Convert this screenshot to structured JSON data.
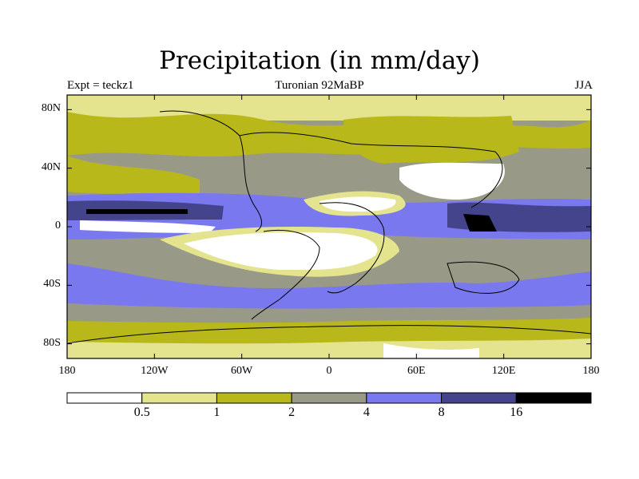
{
  "title": "Precipitation (in mm/day)",
  "left_string": "Expt = teckz1",
  "center_string": "Turonian  92MaBP",
  "right_string": "JJA",
  "map": {
    "lon_range": [
      -180,
      180
    ],
    "lat_range": [
      -90,
      90
    ],
    "x_ticks": [
      {
        "lon": -180,
        "label": "180"
      },
      {
        "lon": -120,
        "label": "120W"
      },
      {
        "lon": -60,
        "label": "60W"
      },
      {
        "lon": 0,
        "label": "0"
      },
      {
        "lon": 60,
        "label": "60E"
      },
      {
        "lon": 120,
        "label": "120E"
      },
      {
        "lon": 180,
        "label": "180"
      }
    ],
    "y_ticks": [
      {
        "lat": 80,
        "label": "80N"
      },
      {
        "lat": 40,
        "label": "40N"
      },
      {
        "lat": 0,
        "label": "0"
      },
      {
        "lat": -40,
        "label": "40S"
      },
      {
        "lat": -80,
        "label": "80S"
      }
    ]
  },
  "colorbar": {
    "levels": [
      "0.5",
      "1",
      "2",
      "4",
      "8",
      "16"
    ],
    "colors": [
      "#ffffff",
      "#e4e38e",
      "#b8b81a",
      "#999988",
      "#7a78ee",
      "#44448c",
      "#000000"
    ]
  }
}
